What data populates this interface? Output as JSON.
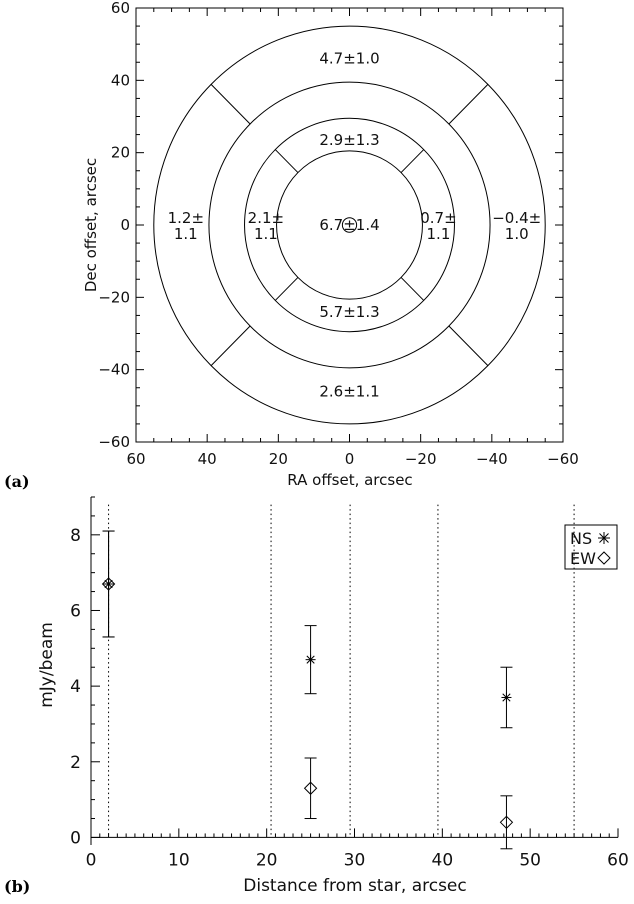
{
  "panels": {
    "a_label": "(a)",
    "b_label": "(b)"
  },
  "chart_data": [
    {
      "type": "other",
      "panel": "(a)",
      "xlabel": "RA offset, arcsec",
      "ylabel": "Dec offset, arcsec",
      "xlim": [
        60,
        -60
      ],
      "ylim": [
        -60,
        60
      ],
      "xticks": [
        60,
        40,
        20,
        0,
        -20,
        -40,
        -60
      ],
      "yticks": [
        -60,
        -40,
        -20,
        0,
        20,
        40,
        60
      ],
      "ring_radii": [
        20.5,
        29.5,
        39.5,
        55
      ],
      "central_marker_radius": 2,
      "regions": [
        {
          "id": "center",
          "text": "6.7±1.4",
          "x": 0,
          "y": 0
        },
        {
          "id": "inner-north",
          "text": "2.9±1.3",
          "x": 0,
          "y": 23.5
        },
        {
          "id": "inner-south",
          "text": "5.7±1.3",
          "x": 0,
          "y": -24
        },
        {
          "id": "inner-east",
          "lines": [
            "2.1±",
            "1.1"
          ],
          "x": 23.5,
          "y": 0
        },
        {
          "id": "inner-west",
          "lines": [
            "0.7±",
            "1.1"
          ],
          "x": -25,
          "y": 0
        },
        {
          "id": "outer-north",
          "text": "4.7±1.0",
          "x": 0,
          "y": 46
        },
        {
          "id": "outer-south",
          "text": "2.6±1.1",
          "x": 0,
          "y": -46
        },
        {
          "id": "outer-east",
          "lines": [
            "1.2±",
            "1.1"
          ],
          "x": 46,
          "y": 0
        },
        {
          "id": "outer-west",
          "lines": [
            "−0.4±",
            "1.0"
          ],
          "x": -47,
          "y": 0
        }
      ]
    },
    {
      "type": "scatter",
      "panel": "(b)",
      "xlabel": "Distance from star, arcsec",
      "ylabel": "mJy/beam",
      "xlim": [
        0,
        60
      ],
      "ylim": [
        -0.2,
        9
      ],
      "xticks": [
        0,
        10,
        20,
        30,
        40,
        50,
        60
      ],
      "yticks": [
        0,
        2,
        4,
        6,
        8
      ],
      "legend": "top-right",
      "vlines": [
        2,
        20.5,
        29.5,
        39.5,
        55
      ],
      "series": [
        {
          "name": "NS",
          "marker": "asterisk",
          "points": [
            {
              "x": 2,
              "y": 6.7,
              "err": 1.4
            },
            {
              "x": 25,
              "y": 4.7,
              "err": 0.9
            },
            {
              "x": 47.3,
              "y": 3.7,
              "err": 0.8
            }
          ]
        },
        {
          "name": "EW",
          "marker": "diamond",
          "points": [
            {
              "x": 2,
              "y": 6.7,
              "err": 1.4
            },
            {
              "x": 25,
              "y": 1.3,
              "err": 0.8
            },
            {
              "x": 47.3,
              "y": 0.4,
              "err": 0.7
            }
          ]
        }
      ]
    }
  ]
}
